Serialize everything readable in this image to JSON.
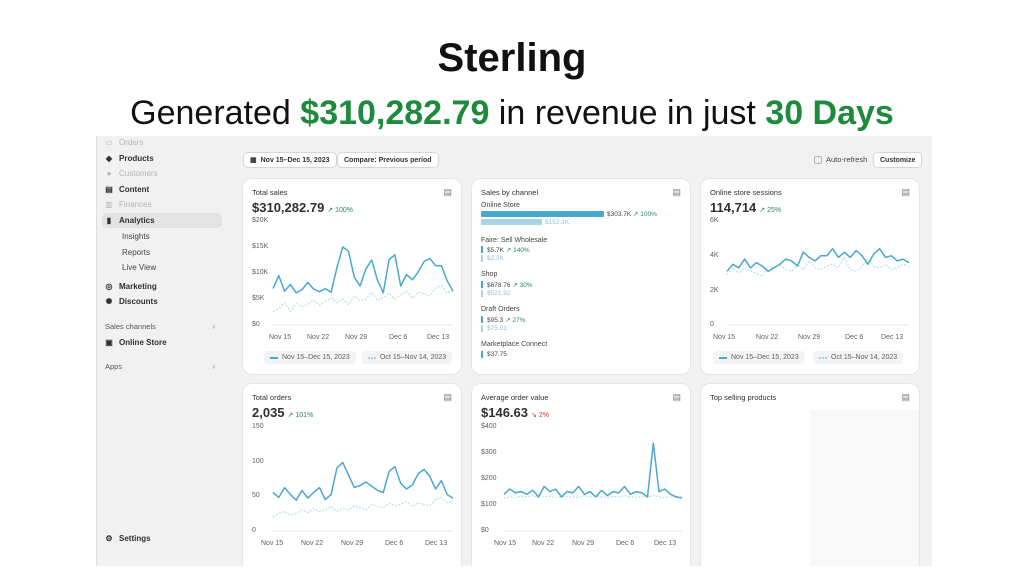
{
  "headline": {
    "brand": "Sterling",
    "prefix": "Generated ",
    "amount": "$310,282.79",
    "middle": " in revenue in just ",
    "period": "30 Days"
  },
  "sidebar": {
    "items": [
      {
        "label": "Orders",
        "icon": "orders-icon"
      },
      {
        "label": "Products",
        "icon": "tag-icon"
      },
      {
        "label": "Customers",
        "icon": "person-icon"
      },
      {
        "label": "Content",
        "icon": "content-icon"
      },
      {
        "label": "Finances",
        "icon": "bank-icon"
      },
      {
        "label": "Analytics",
        "icon": "bar-chart-icon"
      },
      {
        "label": "Insights"
      },
      {
        "label": "Reports"
      },
      {
        "label": "Live View"
      },
      {
        "label": "Marketing",
        "icon": "target-icon"
      },
      {
        "label": "Discounts",
        "icon": "discount-icon"
      }
    ],
    "sales_channels_label": "Sales channels",
    "online_store_label": "Online Store",
    "apps_label": "Apps",
    "settings_label": "Settings"
  },
  "toolbar": {
    "date_range": "Nov 15–Dec 15, 2023",
    "compare": "Compare: Previous period",
    "auto_refresh": "Auto-refresh",
    "customize": "Customize"
  },
  "cards": {
    "total_sales": {
      "title": "Total sales",
      "value": "$310,282.79",
      "change": "100%",
      "y_ticks": [
        "$20K",
        "$15K",
        "$10K",
        "$5K",
        "$0"
      ],
      "x_ticks": [
        "Nov 15",
        "Nov 22",
        "Nov 29",
        "Dec 6",
        "Dec 13"
      ],
      "legend_current": "Nov 15–Dec 15, 2023",
      "legend_previous": "Oct 15–Nov 14, 2023"
    },
    "sales_by_channel": {
      "title": "Sales by channel",
      "channels": [
        {
          "name": "Online Store",
          "value": "$303.7K",
          "change": "100%",
          "prev": "$152.1K"
        },
        {
          "name": "Faire: Sell Wholesale",
          "value": "$5.7K",
          "change": "140%",
          "prev": "$2.3K"
        },
        {
          "name": "Shop",
          "value": "$678.76",
          "change": "30%",
          "prev": "$521.92"
        },
        {
          "name": "Draft Orders",
          "value": "$95.3",
          "change": "27%",
          "prev": "$75.01"
        },
        {
          "name": "Marketplace Connect",
          "value": "$37.75",
          "change": "",
          "prev": ""
        }
      ]
    },
    "sessions": {
      "title": "Online store sessions",
      "value": "114,714",
      "change": "25%",
      "y_ticks": [
        "6K",
        "4K",
        "2K",
        "0"
      ],
      "x_ticks": [
        "Nov 15",
        "Nov 22",
        "Nov 29",
        "Dec 6",
        "Dec 13"
      ],
      "legend_current": "Nov 15–Dec 15, 2023",
      "legend_previous": "Oct 15–Nov 14, 2023"
    },
    "total_orders": {
      "title": "Total orders",
      "value": "2,035",
      "change": "101%",
      "y_ticks": [
        "150",
        "100",
        "50",
        "0"
      ],
      "x_ticks": [
        "Nov 15",
        "Nov 22",
        "Nov 29",
        "Dec 6",
        "Dec 13"
      ]
    },
    "aov": {
      "title": "Average order value",
      "value": "$146.63",
      "change": "2%",
      "y_ticks": [
        "$400",
        "$300",
        "$200",
        "$100",
        "$0"
      ],
      "x_ticks": [
        "Nov 15",
        "Nov 22",
        "Nov 29",
        "Dec 6",
        "Dec 13"
      ]
    },
    "top_products": {
      "title": "Top selling products"
    }
  },
  "chart_data": [
    {
      "type": "line",
      "id": "total_sales",
      "ylim": [
        0,
        20000
      ],
      "series": [
        {
          "name": "Nov 15–Dec 15, 2023",
          "values": [
            7000,
            9500,
            6500,
            7800,
            6200,
            6800,
            8200,
            6900,
            6400,
            7000,
            6300,
            11000,
            15000,
            14200,
            9200,
            7500,
            10800,
            12500,
            8600,
            6200,
            12600,
            13500,
            7500,
            9700,
            8700,
            10200,
            12200,
            12800,
            11400,
            11400,
            8500,
            6500
          ]
        },
        {
          "name": "Oct 15–Nov 14, 2023",
          "values": [
            2600,
            3200,
            4300,
            2600,
            4200,
            3500,
            4000,
            4800,
            3800,
            4500,
            5200,
            4300,
            5000,
            3900,
            5600,
            4700,
            5000,
            6300,
            4700,
            5300,
            6100,
            5000,
            5800,
            6500,
            5200,
            6300,
            6000,
            5600,
            7100,
            7600,
            6200,
            6800
          ]
        }
      ]
    },
    {
      "type": "line",
      "id": "sessions",
      "ylim": [
        0,
        6000
      ],
      "series": [
        {
          "name": "Nov 15–Dec 15, 2023",
          "values": [
            3100,
            3500,
            3300,
            3800,
            3300,
            3600,
            3400,
            3100,
            3300,
            3500,
            3800,
            3700,
            3400,
            4200,
            3900,
            3700,
            4000,
            4000,
            4400,
            3900,
            4200,
            3900,
            4300,
            4000,
            3500,
            4100,
            4400,
            3900,
            4000,
            3700,
            3800,
            3600
          ]
        },
        {
          "name": "Oct 15–Nov 14, 2023",
          "values": [
            2900,
            3300,
            3000,
            3300,
            3100,
            3000,
            2800,
            3400,
            3300,
            3500,
            3200,
            3100,
            3500,
            3200,
            3700,
            3300,
            3200,
            3400,
            3500,
            3300,
            3900,
            3200,
            3100,
            3400,
            3800,
            3400,
            3300,
            3500,
            3200,
            3300,
            3500,
            3400
          ]
        }
      ]
    },
    {
      "type": "line",
      "id": "total_orders",
      "ylim": [
        0,
        150
      ],
      "series": [
        {
          "name": "Nov 15–Dec 15, 2023",
          "values": [
            55,
            48,
            62,
            52,
            44,
            58,
            47,
            55,
            62,
            45,
            52,
            90,
            98,
            80,
            62,
            65,
            70,
            64,
            58,
            55,
            85,
            92,
            68,
            60,
            66,
            82,
            88,
            78,
            60,
            72,
            52,
            47
          ]
        },
        {
          "name": "Oct 15–Nov 14, 2023",
          "values": [
            20,
            25,
            28,
            22,
            25,
            30,
            26,
            32,
            28,
            30,
            35,
            28,
            32,
            30,
            36,
            33,
            30,
            38,
            35,
            33,
            40,
            36,
            38,
            42,
            35,
            40,
            38,
            36,
            45,
            48,
            40,
            44
          ]
        }
      ]
    },
    {
      "type": "line",
      "id": "aov",
      "ylim": [
        0,
        400
      ],
      "series": [
        {
          "name": "Nov 15–Dec 15, 2023",
          "values": [
            140,
            160,
            145,
            150,
            140,
            155,
            130,
            170,
            150,
            160,
            130,
            150,
            145,
            170,
            140,
            150,
            130,
            155,
            135,
            150,
            145,
            170,
            140,
            150,
            145,
            130,
            335,
            150,
            160,
            140,
            130,
            125
          ]
        },
        {
          "name": "Oct 15–Nov 14, 2023",
          "values": [
            125,
            130,
            128,
            132,
            130,
            135,
            128,
            130,
            133,
            128,
            130,
            132,
            130,
            128,
            135,
            130,
            133,
            130,
            128,
            132,
            130,
            135,
            130,
            128,
            132,
            130,
            135,
            130,
            128,
            130,
            132,
            130
          ]
        }
      ]
    }
  ]
}
